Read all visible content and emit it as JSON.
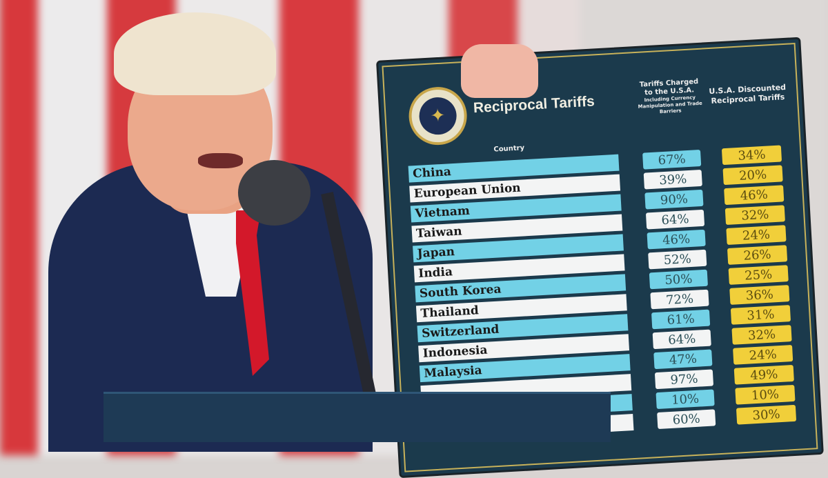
{
  "background": {
    "stripe_colors": [
      "#d7383c",
      "#ecebec"
    ]
  },
  "board": {
    "title": "Reciprocal Tariffs",
    "seal_icon": "presidential-seal",
    "country_header": "Country",
    "col1_header": "Tariffs Charged to the U.S.A.",
    "col1_subheader": "Including Currency Manipulation and Trade Barriers",
    "col2_header": "U.S.A. Discounted Reciprocal Tariffs",
    "colors": {
      "board": "#1b3a4c",
      "cyan": "#72d1e6",
      "yellow": "#f1cf3a"
    },
    "rows": [
      {
        "country": "China",
        "charged": "67%",
        "discounted": "34%"
      },
      {
        "country": "European Union",
        "charged": "39%",
        "discounted": "20%"
      },
      {
        "country": "Vietnam",
        "charged": "90%",
        "discounted": "46%"
      },
      {
        "country": "Taiwan",
        "charged": "64%",
        "discounted": "32%"
      },
      {
        "country": "Japan",
        "charged": "46%",
        "discounted": "24%"
      },
      {
        "country": "India",
        "charged": "52%",
        "discounted": "26%"
      },
      {
        "country": "South Korea",
        "charged": "50%",
        "discounted": "25%"
      },
      {
        "country": "Thailand",
        "charged": "72%",
        "discounted": "36%"
      },
      {
        "country": "Switzerland",
        "charged": "61%",
        "discounted": "31%"
      },
      {
        "country": "Indonesia",
        "charged": "64%",
        "discounted": "32%"
      },
      {
        "country": "Malaysia",
        "charged": "47%",
        "discounted": "24%"
      },
      {
        "country": "",
        "charged": "97%",
        "discounted": "49%"
      },
      {
        "country": "",
        "charged": "10%",
        "discounted": "10%"
      },
      {
        "country": "",
        "charged": "60%",
        "discounted": "30%"
      }
    ]
  }
}
